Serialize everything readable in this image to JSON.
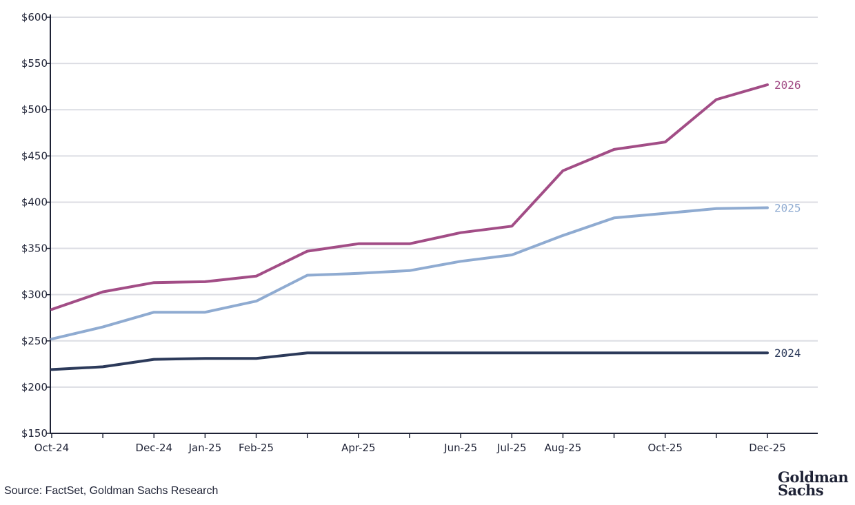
{
  "chart_data": {
    "type": "line",
    "title": "",
    "xlabel": "",
    "ylabel": "",
    "ylim": [
      150,
      600
    ],
    "yticks": [
      "$150",
      "$200",
      "$250",
      "$300",
      "$350",
      "$400",
      "$450",
      "$500",
      "$550",
      "$600"
    ],
    "ytick_values": [
      150,
      200,
      250,
      300,
      350,
      400,
      450,
      500,
      550,
      600
    ],
    "x": [
      "Oct-24",
      "Nov-24",
      "Dec-24",
      "Jan-25",
      "Feb-25",
      "Mar-25",
      "Apr-25",
      "May-25",
      "Jun-25",
      "Jul-25",
      "Aug-25",
      "Sep-25",
      "Oct-25",
      "Nov-25",
      "Dec-25"
    ],
    "xtick_labels": [
      "Oct-24",
      "",
      "Dec-24",
      "Jan-25",
      "Feb-25",
      "",
      "Apr-25",
      "",
      "Jun-25",
      "Jul-25",
      "Aug-25",
      "",
      "Oct-25",
      "",
      "Dec-25"
    ],
    "grid": true,
    "legend": "inline labels at line ends",
    "series": [
      {
        "name": "2026",
        "color": "#a24d86",
        "values": [
          284,
          303,
          313,
          314,
          320,
          347,
          355,
          355,
          367,
          374,
          434,
          457,
          465,
          511,
          527
        ]
      },
      {
        "name": "2025",
        "color": "#8fabd1",
        "values": [
          252,
          265,
          281,
          281,
          293,
          321,
          323,
          326,
          336,
          343,
          364,
          383,
          388,
          393,
          394
        ]
      },
      {
        "name": "2024",
        "color": "#2c3a5a",
        "values": [
          219,
          222,
          230,
          231,
          231,
          237,
          237,
          237,
          237,
          237,
          237,
          237,
          237,
          237,
          237
        ]
      }
    ]
  },
  "footer": {
    "source": "Source: FactSet, Goldman Sachs Research",
    "logo_line1": "Goldman",
    "logo_line2": "Sachs"
  }
}
